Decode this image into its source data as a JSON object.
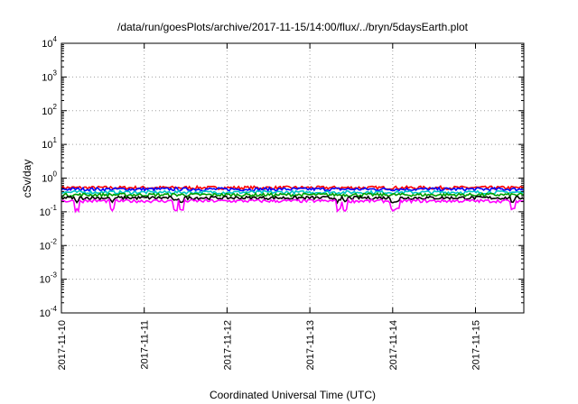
{
  "chart_data": {
    "type": "line",
    "title": "/data/run/goesPlots/archive/2017-11-15/14:00/flux/../bryn/5daysEarth.plot",
    "xlabel": "Coordinated Universal Time (UTC)",
    "ylabel": "cSv/day",
    "y_scale": "log",
    "ylim": [
      0.0001,
      10000
    ],
    "xlim": [
      "2017-11-10",
      "2017-11-15 14:00"
    ],
    "x_tick_labels": [
      "2017-11-10",
      "2017-11-11",
      "2017-11-12",
      "2017-11-13",
      "2017-11-14",
      "2017-11-15"
    ],
    "y_ticks": [
      {
        "base": "10",
        "exp": "-4"
      },
      {
        "base": "10",
        "exp": "-3"
      },
      {
        "base": "10",
        "exp": "-2"
      },
      {
        "base": "10",
        "exp": "-1"
      },
      {
        "base": "10",
        "exp": "0"
      },
      {
        "base": "10",
        "exp": "1"
      },
      {
        "base": "10",
        "exp": "2"
      },
      {
        "base": "10",
        "exp": "3"
      },
      {
        "base": "10",
        "exp": "4"
      }
    ],
    "grid": true,
    "series": [
      {
        "color": "#ff0000",
        "level": 0.52
      },
      {
        "color": "#0000ff",
        "level": 0.47
      },
      {
        "color": "#00c8c8",
        "level": 0.38
      },
      {
        "color": "#00a000",
        "level": 0.32
      },
      {
        "color": "#000000",
        "level": 0.26
      },
      {
        "color": "#ff00ff",
        "level": 0.21
      }
    ]
  }
}
